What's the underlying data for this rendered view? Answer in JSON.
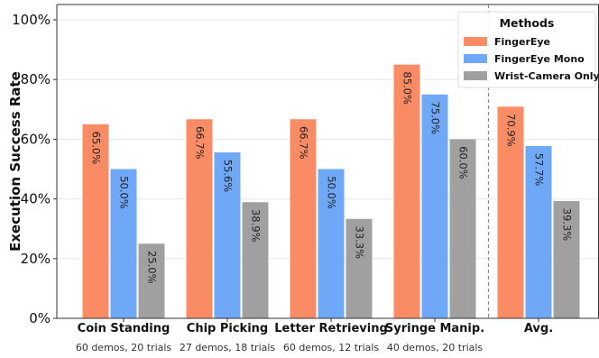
{
  "chart_data": {
    "type": "bar",
    "ylabel": "Execution Success Rate",
    "ylim": [
      0,
      100
    ],
    "yticks": [
      "0%",
      "20%",
      "40%",
      "60%",
      "80%",
      "100%"
    ],
    "grid": true,
    "legend": {
      "title": "Methods",
      "placement": "top-right"
    },
    "categories": [
      "Coin Standing",
      "Chip Picking",
      "Letter Retrieving",
      "Syringe Manip.",
      "Avg."
    ],
    "subtitles": [
      "60 demos, 20 trials",
      "27 demos, 18 trials",
      "60 demos, 12 trials",
      "40 demos, 20 trials",
      ""
    ],
    "series": [
      {
        "name": "FingerEye",
        "color": "#f98c64",
        "values": [
          65.0,
          66.7,
          66.7,
          85.0,
          70.9
        ],
        "labels": [
          "65.0%",
          "66.7%",
          "66.7%",
          "85.0%",
          "70.9%"
        ]
      },
      {
        "name": "FingerEye Mono",
        "color": "#6fa8f7",
        "values": [
          50.0,
          55.6,
          50.0,
          75.0,
          57.7
        ],
        "labels": [
          "50.0%",
          "55.6%",
          "50.0%",
          "75.0%",
          "57.7%"
        ]
      },
      {
        "name": "Wrist-Camera Only",
        "color": "#a0a0a0",
        "values": [
          25.0,
          38.9,
          33.3,
          60.0,
          39.3
        ],
        "labels": [
          "25.0%",
          "38.9%",
          "33.3%",
          "60.0%",
          "39.3%"
        ]
      }
    ]
  }
}
